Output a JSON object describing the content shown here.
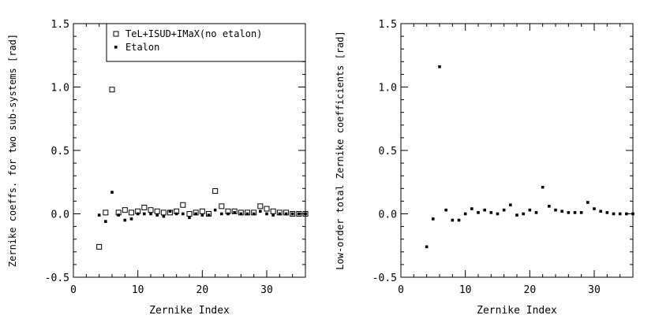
{
  "chart_data": [
    {
      "type": "scatter",
      "title": "",
      "xlabel": "Zernike Index",
      "ylabel": "Zernike coeffs. for two sub-systems [rad]",
      "xlim": [
        0,
        36
      ],
      "ylim": [
        -0.5,
        1.5
      ],
      "xticks": [
        0,
        10,
        20,
        30
      ],
      "yticks": [
        -0.5,
        0.0,
        0.5,
        1.0,
        1.5
      ],
      "grid": false,
      "legend": {
        "position": "top-right"
      },
      "series": [
        {
          "name": "TeL+ISUD+IMaX(no etalon)",
          "marker": "square",
          "x": [
            4,
            5,
            6,
            7,
            8,
            9,
            10,
            11,
            12,
            13,
            14,
            15,
            16,
            17,
            18,
            19,
            20,
            21,
            22,
            23,
            24,
            25,
            26,
            27,
            28,
            29,
            30,
            31,
            32,
            33,
            34,
            35,
            36
          ],
          "y": [
            -0.26,
            0.01,
            0.98,
            0.01,
            0.03,
            0.01,
            0.02,
            0.05,
            0.03,
            0.02,
            0.01,
            0.01,
            0.02,
            0.07,
            0.0,
            0.01,
            0.02,
            0.0,
            0.18,
            0.06,
            0.02,
            0.02,
            0.01,
            0.01,
            0.01,
            0.06,
            0.04,
            0.02,
            0.01,
            0.01,
            0.0,
            0.0,
            0.0
          ]
        },
        {
          "name": "Etalon",
          "marker": "dot",
          "x": [
            4,
            5,
            6,
            7,
            8,
            9,
            10,
            11,
            12,
            13,
            14,
            15,
            16,
            17,
            18,
            19,
            20,
            21,
            22,
            23,
            24,
            25,
            26,
            27,
            28,
            29,
            30,
            31,
            32,
            33,
            34,
            35,
            36
          ],
          "y": [
            -0.01,
            -0.06,
            0.17,
            -0.01,
            -0.05,
            -0.04,
            0.0,
            0.0,
            0.0,
            -0.01,
            -0.02,
            0.02,
            0.0,
            0.0,
            -0.03,
            0.0,
            -0.01,
            -0.01,
            0.03,
            0.0,
            0.0,
            0.01,
            0.0,
            0.0,
            0.0,
            0.02,
            0.0,
            -0.01,
            0.0,
            0.0,
            0.0,
            0.0,
            0.0
          ]
        }
      ]
    },
    {
      "type": "scatter",
      "title": "",
      "xlabel": "Zernike Index",
      "ylabel": "Low-order total Zernike coefficients [rad]",
      "xlim": [
        0,
        36
      ],
      "ylim": [
        -0.5,
        1.5
      ],
      "xticks": [
        0,
        10,
        20,
        30
      ],
      "yticks": [
        -0.5,
        0.0,
        0.5,
        1.0,
        1.5
      ],
      "grid": false,
      "series": [
        {
          "marker": "dot",
          "x": [
            4,
            5,
            6,
            7,
            8,
            9,
            10,
            11,
            12,
            13,
            14,
            15,
            16,
            17,
            18,
            19,
            20,
            21,
            22,
            23,
            24,
            25,
            26,
            27,
            28,
            29,
            30,
            31,
            32,
            33,
            34,
            35,
            36
          ],
          "y": [
            -0.26,
            -0.04,
            1.16,
            0.03,
            -0.05,
            -0.05,
            0.0,
            0.04,
            0.01,
            0.03,
            0.01,
            0.0,
            0.03,
            0.07,
            -0.01,
            0.0,
            0.03,
            0.01,
            0.21,
            0.06,
            0.03,
            0.02,
            0.01,
            0.01,
            0.01,
            0.09,
            0.04,
            0.02,
            0.01,
            0.0,
            0.0,
            0.0,
            0.0
          ]
        }
      ]
    }
  ]
}
